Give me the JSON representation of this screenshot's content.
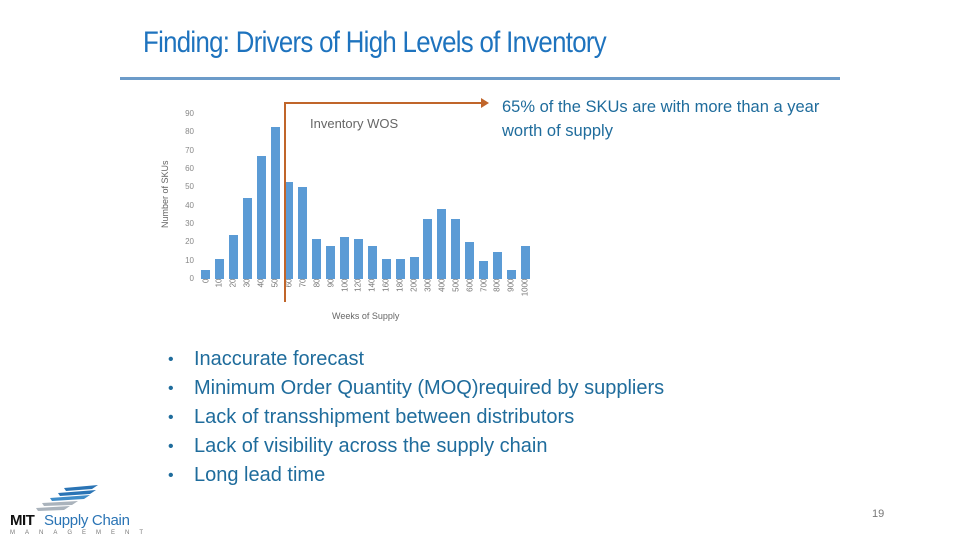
{
  "slide": {
    "title": "Finding: Drivers of High Levels of Inventory",
    "callout": "65% of the SKUs are with more than a year worth of supply",
    "bullets": [
      "Inaccurate forecast",
      "Minimum Order Quantity (MOQ)required by suppliers",
      "Lack of transshipment between distributors",
      "Lack of visibility across the supply chain",
      "Long lead time"
    ],
    "bullet_glyph": "•",
    "page_number": "19",
    "logo": {
      "brand": "MIT",
      "name": "Supply Chain",
      "sub": "MANAGEMENT"
    },
    "colors": {
      "title": "#1e73be",
      "text": "#1f6c9c",
      "bar": "#5b9bd5",
      "arrow": "#c0652a",
      "rule": "#6c9bc9"
    }
  },
  "chart_data": {
    "type": "bar",
    "title": "Inventory WOS",
    "xlabel": "Weeks of Supply",
    "ylabel": "Number of SKUs",
    "ylim": [
      0,
      90
    ],
    "yticks": [
      0,
      10,
      20,
      30,
      40,
      50,
      60,
      70,
      80,
      90
    ],
    "grid": false,
    "legend": null,
    "categories": [
      "0",
      "10",
      "20",
      "30",
      "40",
      "50",
      "60",
      "70",
      "80",
      "90",
      "100",
      "120",
      "140",
      "160",
      "180",
      "200",
      "300",
      "400",
      "500",
      "600",
      "700",
      "800",
      "900",
      "1000"
    ],
    "values": [
      5,
      11,
      24,
      44,
      67,
      83,
      53,
      50,
      22,
      18,
      23,
      22,
      18,
      11,
      11,
      12,
      33,
      38,
      33,
      20,
      10,
      15,
      5,
      18
    ],
    "annotation": {
      "text": "65% of the SKUs are with more than a year worth of supply",
      "marker_between": [
        "50",
        "60"
      ]
    }
  }
}
